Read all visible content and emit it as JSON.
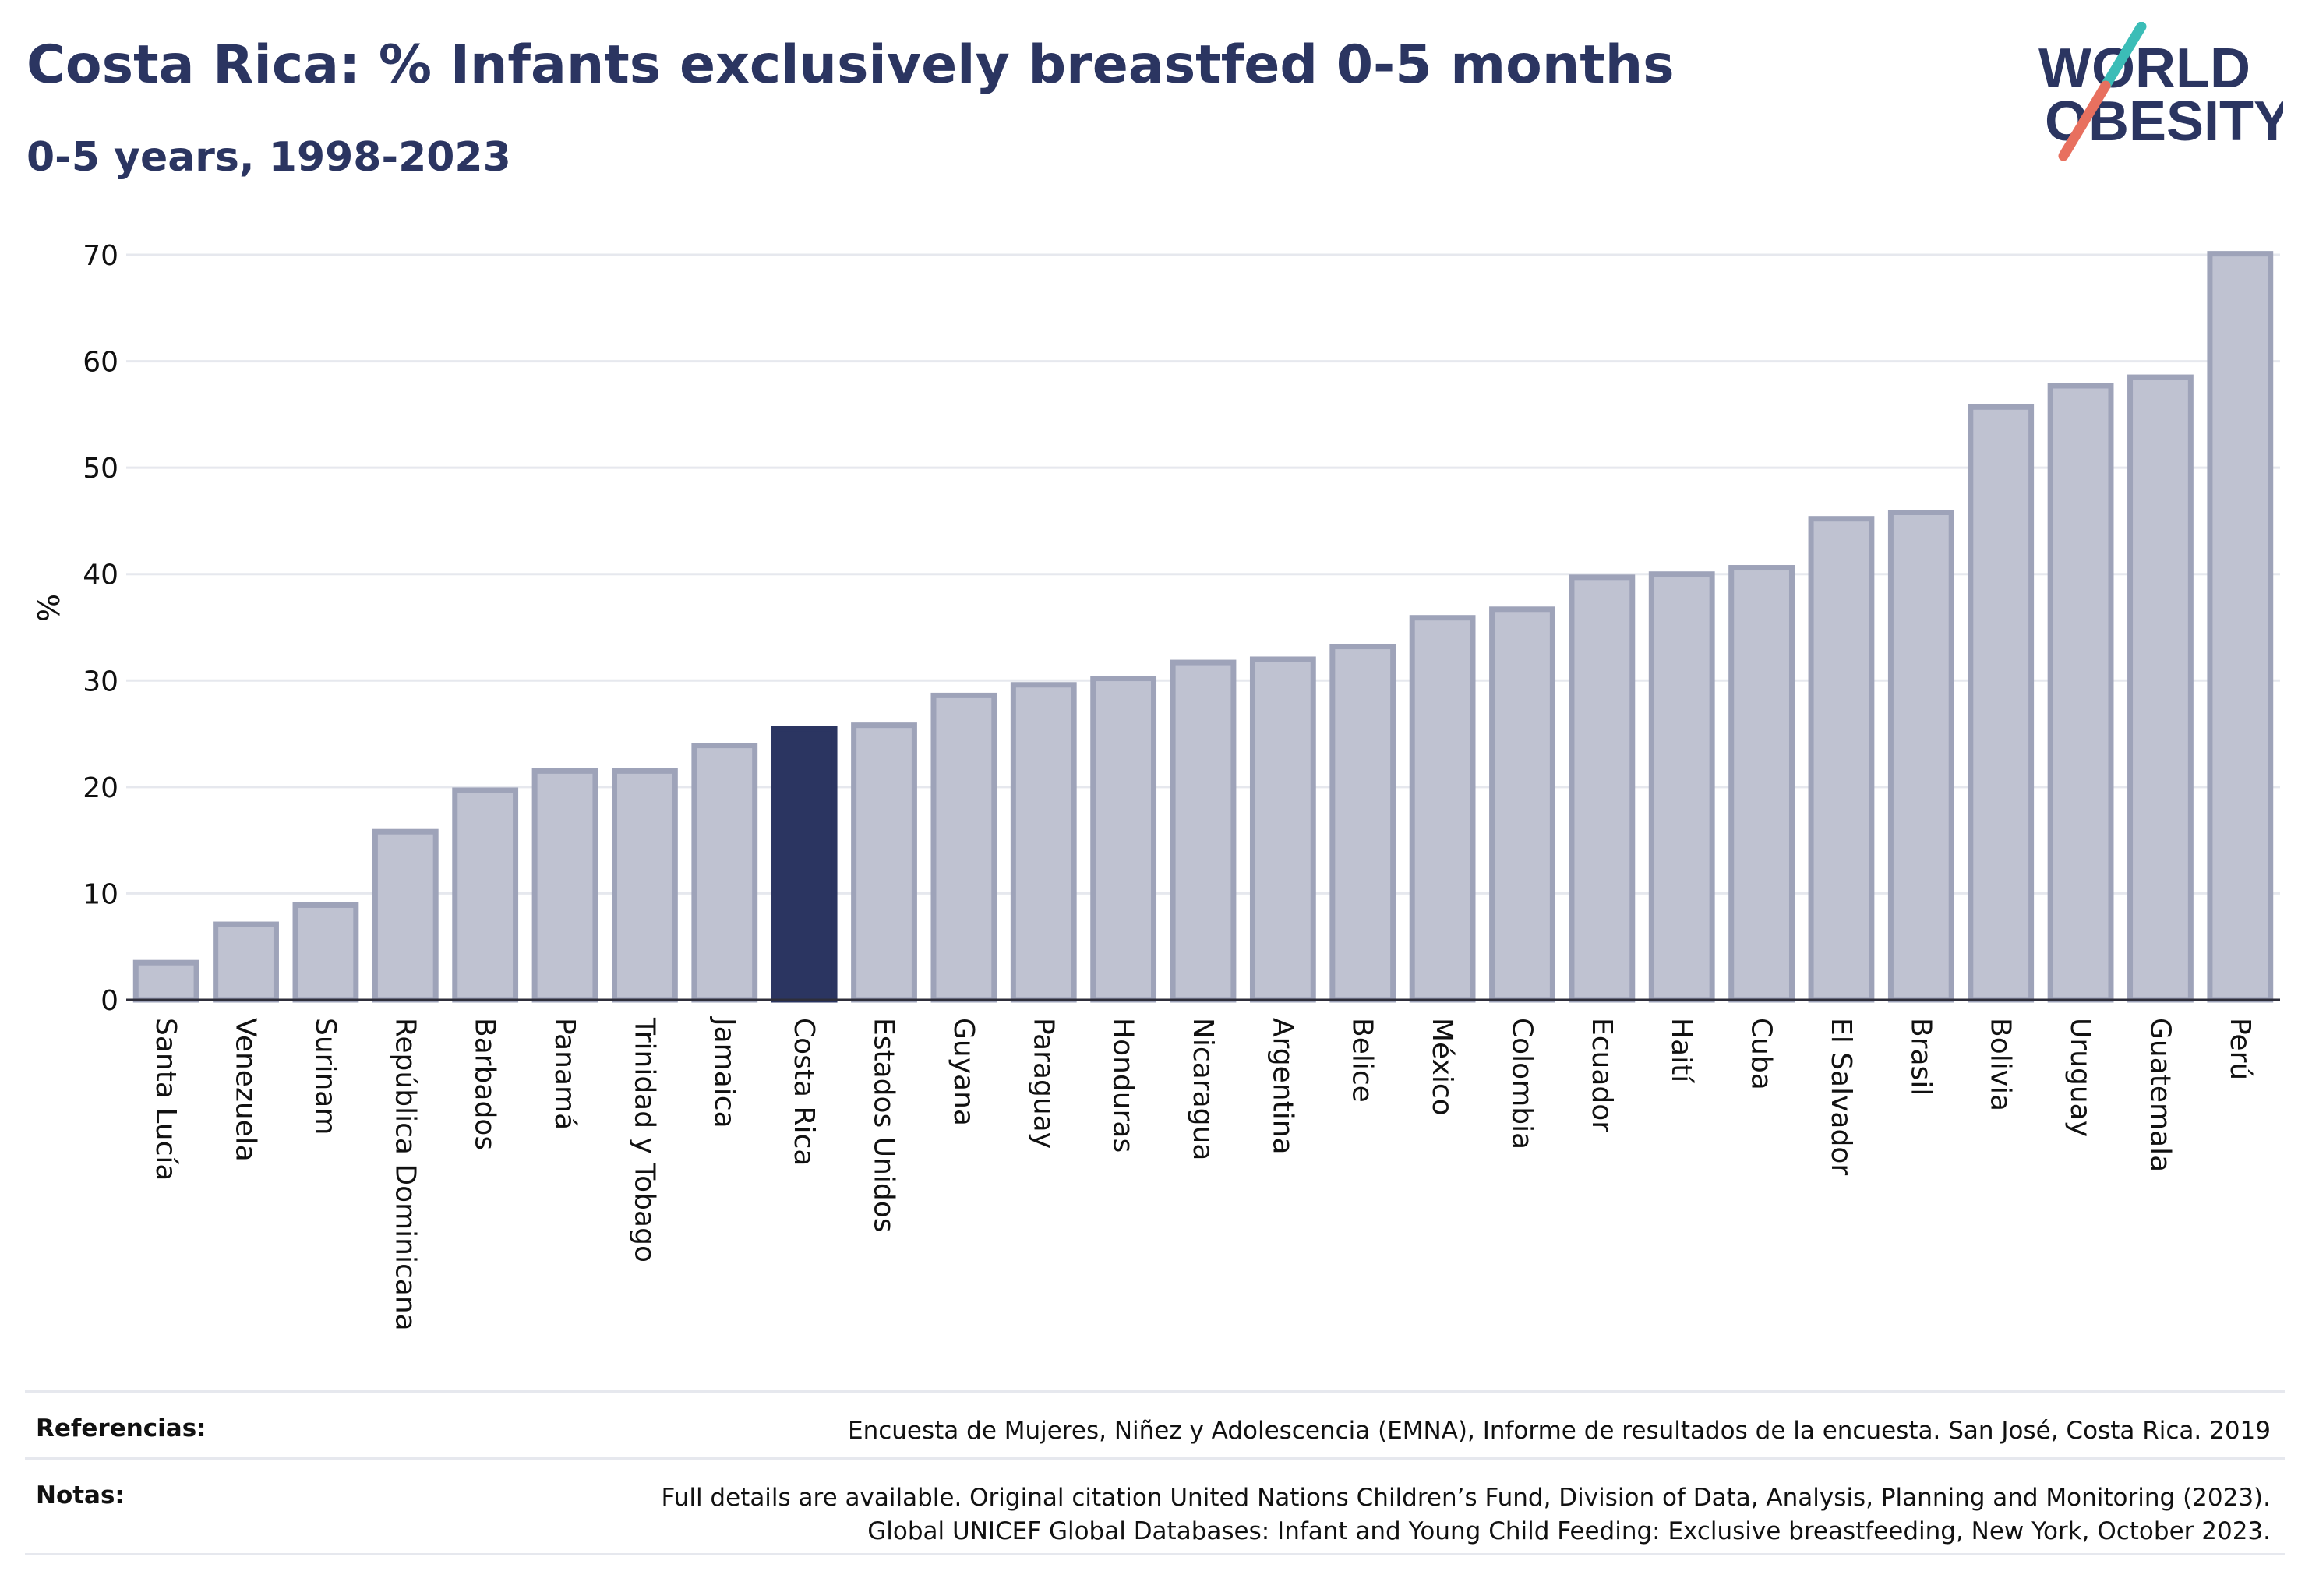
{
  "header": {
    "title": "Costa Rica: % Infants exclusively breastfed 0-5 months",
    "subtitle": "0-5 years, 1998-2023"
  },
  "logo": {
    "line1": "WORLD",
    "line2": "OBESITY"
  },
  "colors": {
    "highlight": "#2b3561",
    "bar_fill": "#bfc2d1",
    "bar_stroke": "#9ea3b9",
    "grid": "#e6e8ee",
    "logo_teal": "#3bbdb7",
    "logo_coral": "#e8705f"
  },
  "chart_data": {
    "type": "bar",
    "ylabel": "%",
    "ylim": [
      0,
      70
    ],
    "yticks": [
      "0",
      "10",
      "20",
      "30",
      "40",
      "50",
      "60",
      "70"
    ],
    "highlight": "Costa Rica",
    "categories": [
      "Santa Lucía",
      "Venezuela",
      "Surinam",
      "República Dominicana",
      "Barbados",
      "Panamá",
      "Trinidad y Tobago",
      "Jamaica",
      "Costa Rica",
      "Estados Unidos",
      "Guyana",
      "Paraguay",
      "Honduras",
      "Nicaragua",
      "Argentina",
      "Belice",
      "México",
      "Colombia",
      "Ecuador",
      "Haití",
      "Cuba",
      "El Salvador",
      "Brasil",
      "Bolivia",
      "Uruguay",
      "Guatemala",
      "Perú"
    ],
    "values": [
      3.5,
      7.1,
      8.9,
      15.8,
      19.7,
      21.5,
      21.5,
      23.9,
      25.5,
      25.8,
      28.6,
      29.6,
      30.2,
      31.7,
      32,
      33.2,
      35.9,
      36.7,
      39.7,
      40,
      40.6,
      45.2,
      45.8,
      55.7,
      57.7,
      58.5,
      70.1
    ]
  },
  "footer": {
    "references_label": "Referencias:",
    "references_text": "Encuesta de Mujeres, Niñez y Adolescencia (EMNA), Informe de resultados de la encuesta. San José, Costa Rica. 2019",
    "notes_label": "Notas:",
    "notes_line1": "Full details are available. Original citation United Nations Children’s Fund, Division of Data, Analysis, Planning and Monitoring (2023).",
    "notes_line2": "Global UNICEF Global Databases: Infant and Young Child Feeding: Exclusive breastfeeding, New York, October 2023."
  }
}
